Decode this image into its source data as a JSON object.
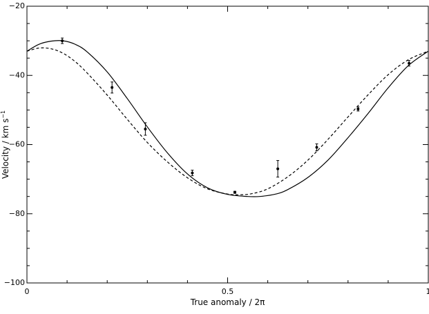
{
  "chart_data": {
    "type": "scatter",
    "xlabel": "True anomaly / 2π",
    "ylabel_main": "Velocity / km s",
    "ylabel_sup": "−1",
    "xlim": [
      0,
      1
    ],
    "ylim": [
      -100,
      -20
    ],
    "x_ticks": [
      {
        "value": 0,
        "label": "0"
      },
      {
        "value": 0.5,
        "label": "0.5"
      },
      {
        "value": 1,
        "label": "1"
      }
    ],
    "y_ticks": [
      {
        "value": -20,
        "label": "−20"
      },
      {
        "value": -40,
        "label": "−40"
      },
      {
        "value": -60,
        "label": "−60"
      },
      {
        "value": -80,
        "label": "−80"
      },
      {
        "value": -100,
        "label": "−100"
      }
    ],
    "grid": false,
    "points": [
      {
        "x": 0.088,
        "y": -30.0,
        "err": 0.8
      },
      {
        "x": 0.212,
        "y": -43.5,
        "err": 1.6
      },
      {
        "x": 0.295,
        "y": -55.5,
        "err": 1.8
      },
      {
        "x": 0.412,
        "y": -68.2,
        "err": 0.8
      },
      {
        "x": 0.518,
        "y": -73.8,
        "err": 0.3
      },
      {
        "x": 0.625,
        "y": -67.0,
        "err": 2.4
      },
      {
        "x": 0.722,
        "y": -60.8,
        "err": 1.0
      },
      {
        "x": 0.825,
        "y": -49.7,
        "err": 0.6
      },
      {
        "x": 0.952,
        "y": -36.5,
        "err": 0.8
      }
    ],
    "series": [
      {
        "style": "solid",
        "x": [
          0,
          0.03,
          0.06,
          0.09,
          0.12,
          0.15,
          0.2,
          0.25,
          0.3,
          0.35,
          0.4,
          0.45,
          0.5,
          0.55,
          0.58,
          0.62,
          0.65,
          0.7,
          0.75,
          0.8,
          0.85,
          0.9,
          0.95,
          1
        ],
        "y": [
          -33.0,
          -31.0,
          -30.1,
          -30.0,
          -31.0,
          -33.2,
          -39.0,
          -46.7,
          -54.9,
          -62.4,
          -68.5,
          -72.5,
          -74.4,
          -75.0,
          -75.0,
          -74.3,
          -73.0,
          -69.5,
          -64.5,
          -58.0,
          -51.0,
          -43.6,
          -37.2,
          -33.0
        ]
      },
      {
        "style": "dashed",
        "x": [
          0,
          0.03,
          0.06,
          0.09,
          0.12,
          0.15,
          0.2,
          0.25,
          0.3,
          0.35,
          0.4,
          0.45,
          0.5,
          0.53,
          0.56,
          0.6,
          0.65,
          0.7,
          0.75,
          0.8,
          0.85,
          0.9,
          0.95,
          1
        ],
        "y": [
          -33.0,
          -32.1,
          -32.3,
          -33.6,
          -36.0,
          -39.3,
          -45.7,
          -52.7,
          -59.4,
          -65.0,
          -69.6,
          -72.8,
          -74.3,
          -74.5,
          -74.2,
          -72.8,
          -69.3,
          -64.5,
          -58.5,
          -52.0,
          -45.6,
          -39.8,
          -35.5,
          -33.0
        ]
      }
    ]
  }
}
